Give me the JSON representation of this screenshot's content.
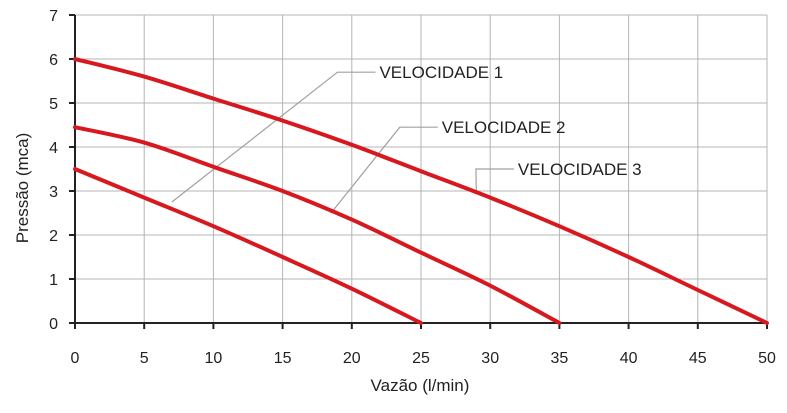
{
  "chart_data": {
    "type": "line",
    "title": "",
    "xlabel": "Vazão (l/min)",
    "ylabel": "Pressão (mca)",
    "xlim": [
      0,
      50
    ],
    "ylim": [
      0,
      7
    ],
    "xticks": [
      0,
      5,
      10,
      15,
      20,
      25,
      30,
      35,
      40,
      45,
      50
    ],
    "yticks": [
      0,
      1,
      2,
      3,
      4,
      5,
      6,
      7
    ],
    "grid": true,
    "legend": "callout labels with leader lines",
    "colors": {
      "series": "#d7191f",
      "grid": "#b4b4b4",
      "axis": "#222222",
      "leader": "#a0a0a0"
    },
    "series": [
      {
        "name": "VELOCIDADE 1",
        "x": [
          0,
          5,
          10,
          15,
          20,
          25
        ],
        "y": [
          3.5,
          2.85,
          2.2,
          1.5,
          0.78,
          0
        ]
      },
      {
        "name": "VELOCIDADE 2",
        "x": [
          0,
          5,
          10,
          15,
          20,
          25,
          30,
          35
        ],
        "y": [
          4.45,
          4.1,
          3.55,
          3.0,
          2.35,
          1.6,
          0.85,
          0
        ]
      },
      {
        "name": "VELOCIDADE 3",
        "x": [
          0,
          5,
          10,
          15,
          20,
          25,
          30,
          35,
          40,
          45,
          50
        ],
        "y": [
          6.0,
          5.6,
          5.1,
          4.6,
          4.05,
          3.45,
          2.85,
          2.2,
          1.5,
          0.75,
          0
        ]
      }
    ],
    "annotations": [
      {
        "text": "VELOCIDADE 1",
        "series": 0,
        "point": [
          7,
          2.75
        ],
        "label_at": [
          22,
          5.7
        ]
      },
      {
        "text": "VELOCIDADE 2",
        "series": 1,
        "point": [
          18.5,
          2.5
        ],
        "label_at": [
          26.5,
          4.45
        ]
      },
      {
        "text": "VELOCIDADE 3",
        "series": 2,
        "point": [
          29,
          2.98
        ],
        "label_at": [
          32,
          3.5
        ]
      }
    ]
  }
}
